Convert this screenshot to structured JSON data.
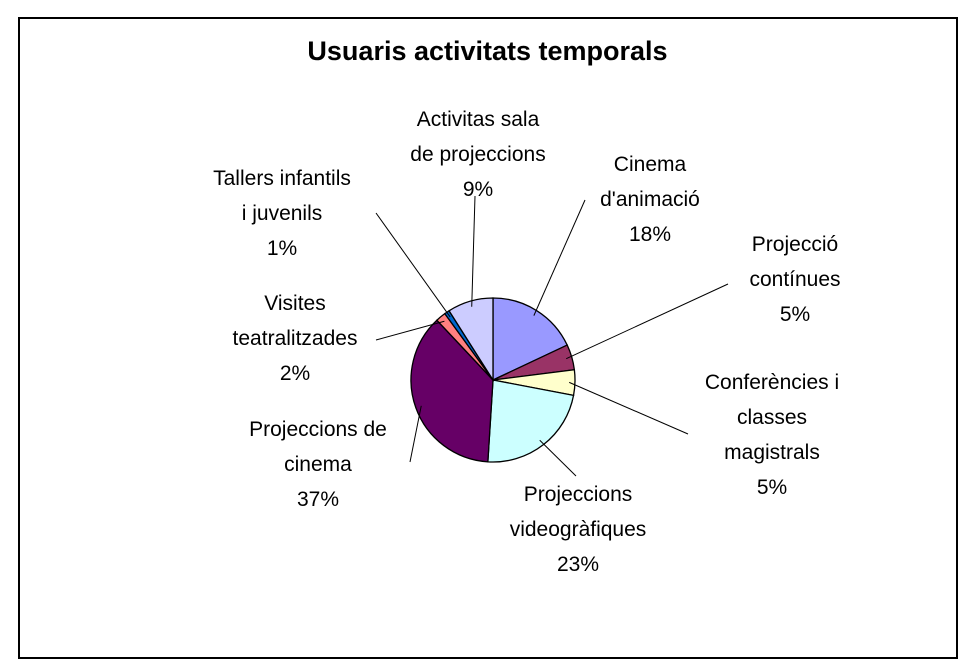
{
  "chart_data": {
    "type": "pie",
    "title": "Usuaris activitats temporals",
    "categories": [
      "Cinema d'animació",
      "Projecció contínues",
      "Conferències i classes magistrals",
      "Projeccions videogràfiques",
      "Projeccions de cinema",
      "Visites teatralitzades",
      "Tallers infantils i juvenils",
      "Activitas sala de projeccions"
    ],
    "values": [
      18,
      5,
      5,
      23,
      37,
      2,
      1,
      9
    ],
    "value_labels": [
      "18%",
      "5%",
      "5%",
      "23%",
      "37%",
      "2%",
      "1%",
      "9%"
    ],
    "colors": [
      "#9999ff",
      "#993366",
      "#ffffcc",
      "#ccffff",
      "#660066",
      "#ff8080",
      "#0066cc",
      "#ccccff"
    ]
  }
}
